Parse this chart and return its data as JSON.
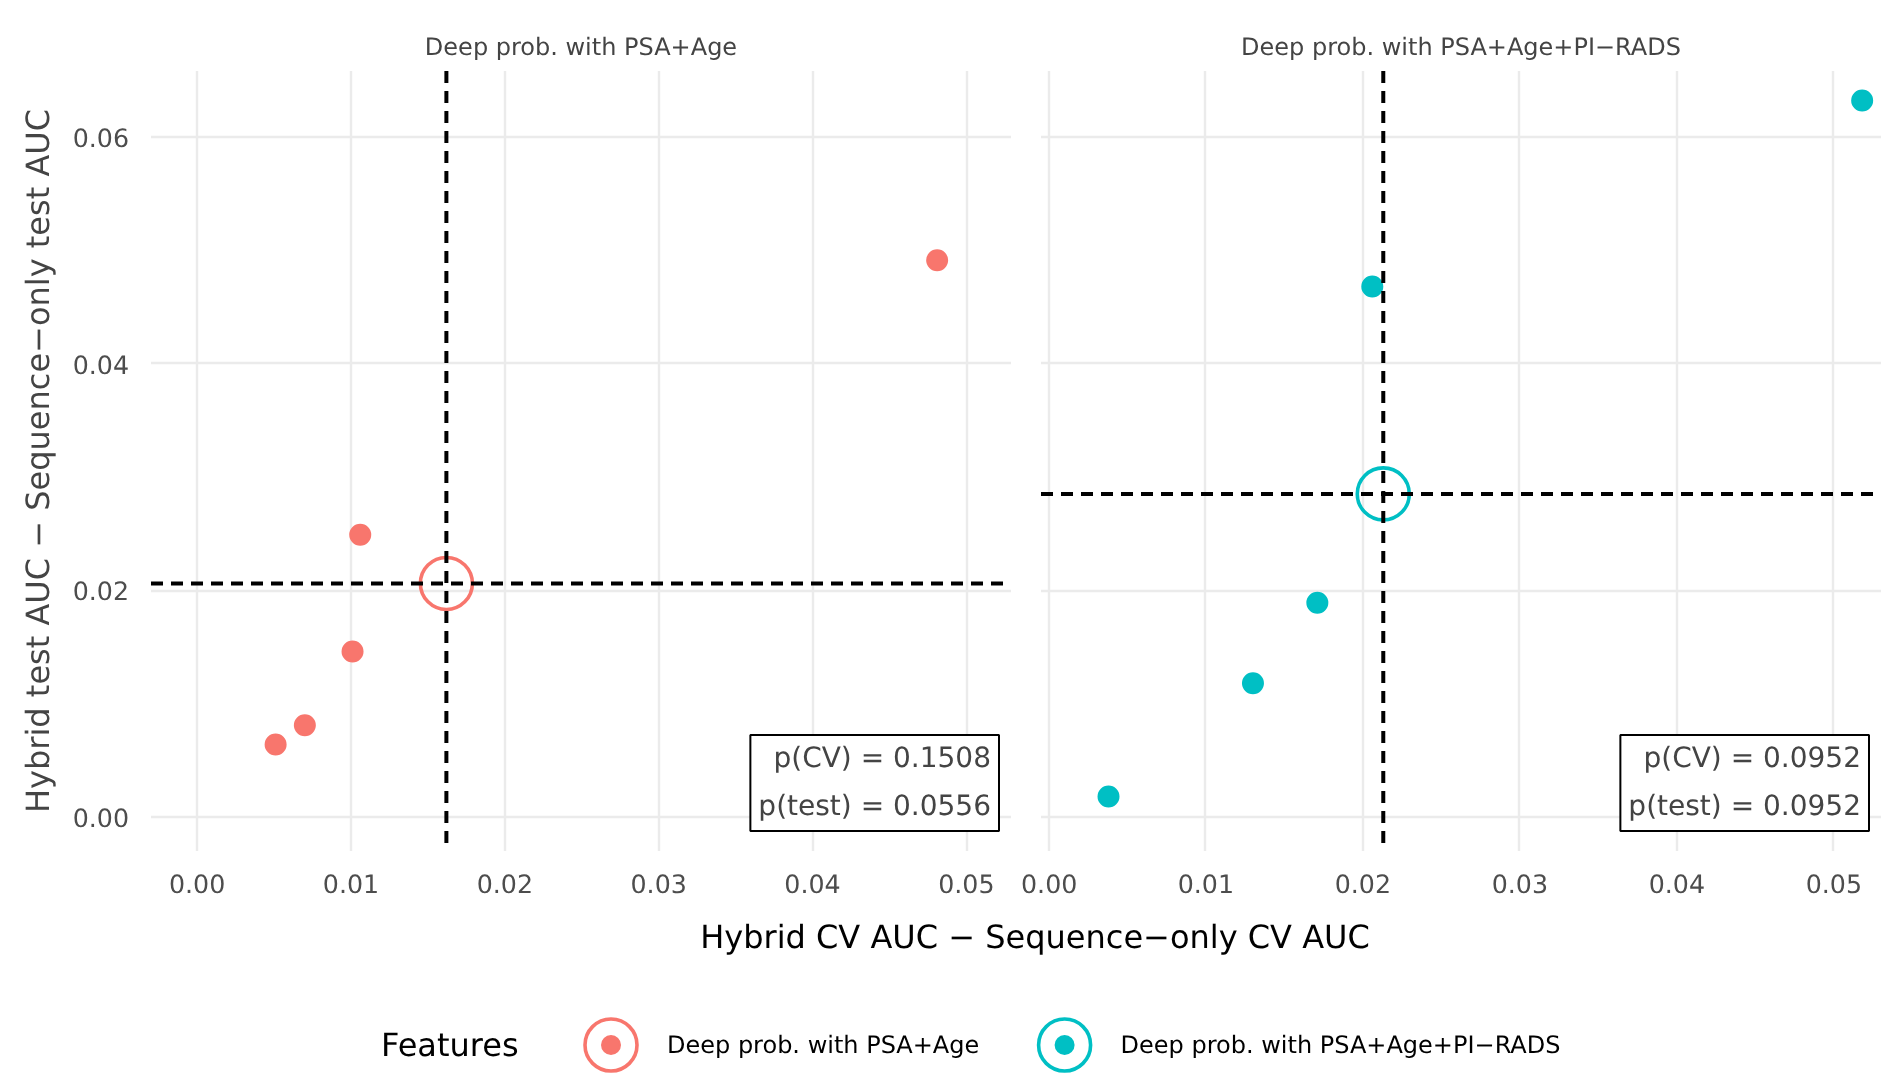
{
  "chart_data": [
    {
      "type": "scatter",
      "title": "Deep prob. with PSA+Age",
      "xlabel": "Hybrid CV AUC − Sequence−only CV AUC",
      "ylabel": "Hybrid test AUC − Sequence−only test AUC",
      "legend_title": "Features",
      "legend": "bottom",
      "grid": true,
      "marker": "circle",
      "xlim": [
        -0.003,
        0.0529
      ],
      "ylim": [
        -0.003,
        0.0658
      ],
      "xticks": [
        {
          "value": 0,
          "label": "0.00"
        },
        {
          "value": 0.01,
          "label": "0.01"
        },
        {
          "value": 0.02,
          "label": "0.02"
        },
        {
          "value": 0.03,
          "label": "0.03"
        },
        {
          "value": 0.04,
          "label": "0.04"
        },
        {
          "value": 0.05,
          "label": "0.05"
        }
      ],
      "yticks": [
        {
          "value": 0,
          "label": "0.00"
        },
        {
          "value": 0.02,
          "label": "0.02"
        },
        {
          "value": 0.04,
          "label": "0.04"
        },
        {
          "value": 0.06,
          "label": "0.06"
        }
      ],
      "series": [
        {
          "name": "Deep prob. with PSA+Age",
          "color": "#f8766d",
          "x": [
            0.0051,
            0.007,
            0.0101,
            0.0106,
            0.0481
          ],
          "values": [
            0.0064,
            0.0081,
            0.0146,
            0.0249,
            0.0491
          ]
        },
        {
          "type": "bubble",
          "color": "#f8766d",
          "x": [
            0.0162
          ],
          "values": [
            0.0206
          ],
          "sizes": [
            1
          ]
        }
      ],
      "ref_lines": [
        {
          "axis": "x",
          "value": 0.0162,
          "color": "#000000",
          "line_style": "dashed"
        },
        {
          "axis": "y",
          "value": 0.0206,
          "color": "#000000",
          "line_style": "dashed"
        }
      ],
      "annotations": [
        "p(CV) = 0.1508\np(test) = 0.0556"
      ]
    },
    {
      "type": "scatter",
      "title": "Deep prob. with PSA+Age+PI−RADS",
      "legend": "bottom",
      "grid": true,
      "marker": "circle",
      "tick_labels": "x",
      "xlim": [
        -0.0005,
        0.053
      ],
      "ylim": [
        -0.003,
        0.0658
      ],
      "xticks": [
        {
          "value": 0,
          "label": "0.00"
        },
        {
          "value": 0.01,
          "label": "0.01"
        },
        {
          "value": 0.02,
          "label": "0.02"
        },
        {
          "value": 0.03,
          "label": "0.03"
        },
        {
          "value": 0.04,
          "label": "0.04"
        },
        {
          "value": 0.05,
          "label": "0.05"
        }
      ],
      "yticks": [
        0,
        0.02,
        0.04,
        0.06
      ],
      "series": [
        {
          "name": "Deep prob. with PSA+Age+PI−RADS",
          "color": "#00bfc4",
          "x": [
            0.0038,
            0.013,
            0.0171,
            0.0206,
            0.0518
          ],
          "values": [
            0.0018,
            0.0118,
            0.0189,
            0.0468,
            0.0632
          ]
        },
        {
          "type": "bubble",
          "color": "#00bfc4",
          "x": [
            0.0213
          ],
          "values": [
            0.0285
          ],
          "sizes": [
            1
          ]
        }
      ],
      "ref_lines": [
        {
          "axis": "x",
          "value": 0.0213,
          "color": "#000000",
          "line_style": "dashed"
        },
        {
          "axis": "y",
          "value": 0.0285,
          "color": "#000000",
          "line_style": "dashed"
        }
      ],
      "annotations": [
        "p(CV) = 0.0952\np(test) = 0.0952"
      ]
    }
  ]
}
